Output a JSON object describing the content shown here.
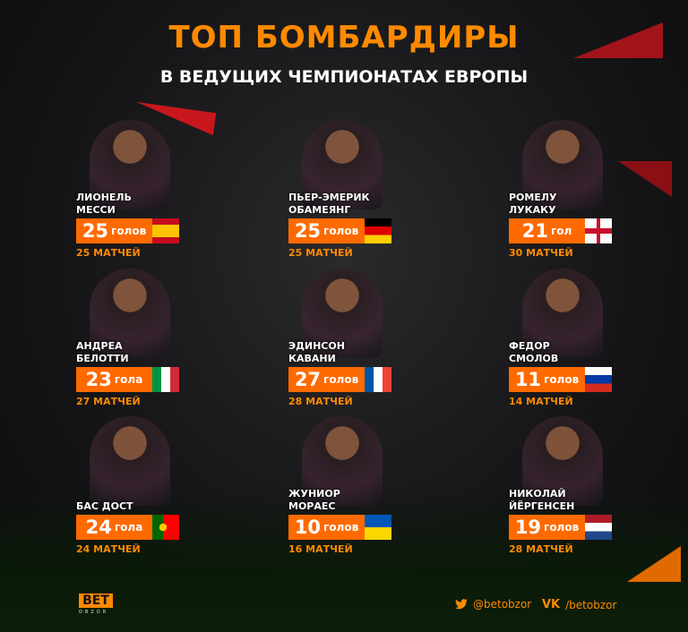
{
  "title": "ТОП БОМБАРДИРЫ",
  "subtitle": "В ВЕДУЩИХ ЧЕМПИОНАТАХ ЕВРОПЫ",
  "accent": "#ff6a00",
  "players": [
    {
      "name": "ЛИОНЕЛЬ\nМЕССИ",
      "goals": "25",
      "unit": "голов",
      "matches": "25 МАТЧЕЙ",
      "flag": "spain"
    },
    {
      "name": "ПЬЕР-ЭМЕРИК\nОБАМЕЯНГ",
      "goals": "25",
      "unit": "голов",
      "matches": "25 МАТЧЕЙ",
      "flag": "germany"
    },
    {
      "name": "РОМЕЛУ\nЛУКАКУ",
      "goals": "21",
      "unit": "гол",
      "matches": "30 МАТЧЕЙ",
      "flag": "england"
    },
    {
      "name": "АНДРЕА\nБЕЛОТТИ",
      "goals": "23",
      "unit": "гола",
      "matches": "27 МАТЧЕЙ",
      "flag": "italy"
    },
    {
      "name": "ЭДИНСОН\nКАВАНИ",
      "goals": "27",
      "unit": "голов",
      "matches": "28 МАТЧЕЙ",
      "flag": "france"
    },
    {
      "name": "ФЕДОР\nСМОЛОВ",
      "goals": "11",
      "unit": "голов",
      "matches": "14 МАТЧЕЙ",
      "flag": "russia"
    },
    {
      "name": "БАС ДОСТ",
      "goals": "24",
      "unit": "гола",
      "matches": "24 МАТЧЕЙ",
      "flag": "portugal"
    },
    {
      "name": "ЖУНИОР\nМОРАЕС",
      "goals": "10",
      "unit": "голов",
      "matches": "16 МАТЧЕЙ",
      "flag": "ukraine"
    },
    {
      "name": "НИКОЛАЙ\nЙЁРГЕНСЕН",
      "goals": "19",
      "unit": "голов",
      "matches": "28 МАТЧЕЙ",
      "flag": "netherlands"
    }
  ],
  "logo": {
    "top": "BET",
    "bottom": "OBZOR"
  },
  "social": {
    "twitter": "@betobzor",
    "vk": "/betobzor",
    "twitter_icon": "twitter-icon",
    "vk_icon": "vk-icon"
  }
}
